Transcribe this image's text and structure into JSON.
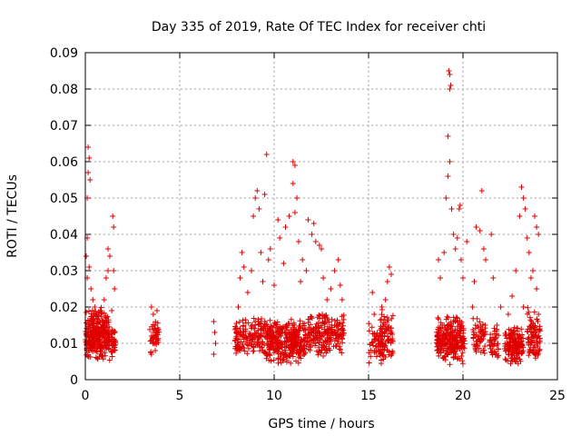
{
  "chart_data": {
    "type": "scatter",
    "title": "Day 335 of 2019, Rate Of TEC Index for receiver chti",
    "xlabel": "GPS time / hours",
    "ylabel": "ROTI / TECUs",
    "xlim": [
      0,
      25
    ],
    "ylim": [
      0,
      0.09
    ],
    "xticks": [
      0,
      5,
      10,
      15,
      20,
      25
    ],
    "yticks": [
      0,
      0.01,
      0.02,
      0.03,
      0.04,
      0.05,
      0.06,
      0.07,
      0.08,
      0.09
    ],
    "xtick_labels": [
      "0",
      "5",
      "10",
      "15",
      "20",
      "25"
    ],
    "ytick_labels": [
      "0",
      "0.01",
      "0.02",
      "0.03",
      "0.04",
      "0.05",
      "0.06",
      "0.07",
      "0.08",
      "0.09"
    ],
    "grid": true,
    "marker": "+",
    "color": "#e00000",
    "series": [
      {
        "name": "ROTI",
        "points": [
          [
            0.05,
            0.034
          ],
          [
            0.1,
            0.039
          ],
          [
            0.15,
            0.064
          ],
          [
            0.2,
            0.061
          ],
          [
            0.1,
            0.05
          ],
          [
            0.15,
            0.057
          ],
          [
            0.25,
            0.055
          ],
          [
            0.3,
            0.025
          ],
          [
            0.1,
            0.028
          ],
          [
            0.2,
            0.031
          ],
          [
            0.4,
            0.022
          ],
          [
            0.5,
            0.02
          ],
          [
            0.6,
            0.018
          ],
          [
            0.3,
            0.016
          ],
          [
            0.8,
            0.019
          ],
          [
            1.0,
            0.022
          ],
          [
            1.1,
            0.028
          ],
          [
            1.2,
            0.03
          ],
          [
            1.3,
            0.034
          ],
          [
            1.2,
            0.036
          ],
          [
            1.45,
            0.045
          ],
          [
            1.5,
            0.042
          ],
          [
            1.5,
            0.03
          ],
          [
            1.55,
            0.025
          ],
          [
            1.4,
            0.019
          ],
          [
            0.5,
            0.012
          ],
          [
            0.7,
            0.011
          ],
          [
            0.9,
            0.013
          ],
          [
            1.1,
            0.015
          ],
          [
            1.5,
            0.008
          ],
          [
            3.5,
            0.02
          ],
          [
            3.6,
            0.018
          ],
          [
            3.7,
            0.015
          ],
          [
            3.5,
            0.012
          ],
          [
            3.6,
            0.01
          ],
          [
            3.7,
            0.008
          ],
          [
            3.8,
            0.019
          ],
          [
            3.5,
            0.007
          ],
          [
            6.8,
            0.016
          ],
          [
            6.85,
            0.013
          ],
          [
            6.9,
            0.01
          ],
          [
            6.8,
            0.007
          ],
          [
            8.0,
            0.013
          ],
          [
            8.1,
            0.02
          ],
          [
            8.2,
            0.028
          ],
          [
            8.3,
            0.035
          ],
          [
            8.4,
            0.031
          ],
          [
            8.5,
            0.012
          ],
          [
            8.6,
            0.024
          ],
          [
            8.8,
            0.03
          ],
          [
            8.9,
            0.045
          ],
          [
            9.0,
            0.05
          ],
          [
            9.1,
            0.052
          ],
          [
            9.2,
            0.047
          ],
          [
            9.3,
            0.035
          ],
          [
            9.5,
            0.051
          ],
          [
            9.6,
            0.062
          ],
          [
            9.4,
            0.027
          ],
          [
            9.7,
            0.033
          ],
          [
            9.8,
            0.036
          ],
          [
            10.0,
            0.026
          ],
          [
            10.2,
            0.044
          ],
          [
            10.3,
            0.039
          ],
          [
            10.5,
            0.032
          ],
          [
            10.6,
            0.042
          ],
          [
            10.8,
            0.045
          ],
          [
            11.0,
            0.06
          ],
          [
            11.1,
            0.059
          ],
          [
            11.0,
            0.054
          ],
          [
            11.2,
            0.05
          ],
          [
            11.1,
            0.046
          ],
          [
            11.3,
            0.038
          ],
          [
            11.4,
            0.027
          ],
          [
            11.5,
            0.033
          ],
          [
            11.7,
            0.03
          ],
          [
            11.8,
            0.044
          ],
          [
            12.0,
            0.04
          ],
          [
            12.1,
            0.043
          ],
          [
            12.2,
            0.038
          ],
          [
            12.4,
            0.037
          ],
          [
            12.5,
            0.036
          ],
          [
            12.6,
            0.028
          ],
          [
            12.8,
            0.022
          ],
          [
            13.0,
            0.025
          ],
          [
            13.2,
            0.03
          ],
          [
            13.4,
            0.033
          ],
          [
            13.5,
            0.026
          ],
          [
            13.6,
            0.022
          ],
          [
            9.0,
            0.015
          ],
          [
            10.0,
            0.012
          ],
          [
            11.0,
            0.011
          ],
          [
            12.0,
            0.013
          ],
          [
            15.2,
            0.024
          ],
          [
            15.3,
            0.018
          ],
          [
            15.4,
            0.012
          ],
          [
            15.5,
            0.009
          ],
          [
            15.7,
            0.02
          ],
          [
            15.9,
            0.022
          ],
          [
            16.0,
            0.027
          ],
          [
            16.1,
            0.031
          ],
          [
            16.2,
            0.029
          ],
          [
            16.0,
            0.008
          ],
          [
            18.7,
            0.033
          ],
          [
            18.8,
            0.028
          ],
          [
            19.0,
            0.035
          ],
          [
            19.1,
            0.05
          ],
          [
            19.2,
            0.056
          ],
          [
            19.3,
            0.06
          ],
          [
            19.25,
            0.085
          ],
          [
            19.3,
            0.084
          ],
          [
            19.35,
            0.081
          ],
          [
            19.3,
            0.08
          ],
          [
            19.2,
            0.067
          ],
          [
            19.4,
            0.047
          ],
          [
            19.5,
            0.04
          ],
          [
            19.6,
            0.036
          ],
          [
            19.7,
            0.039
          ],
          [
            19.8,
            0.047
          ],
          [
            19.85,
            0.048
          ],
          [
            19.9,
            0.033
          ],
          [
            20.0,
            0.028
          ],
          [
            20.2,
            0.038
          ],
          [
            20.6,
            0.027
          ],
          [
            20.7,
            0.042
          ],
          [
            20.9,
            0.041
          ],
          [
            21.0,
            0.052
          ],
          [
            21.1,
            0.036
          ],
          [
            21.2,
            0.033
          ],
          [
            21.5,
            0.04
          ],
          [
            21.6,
            0.028
          ],
          [
            21.8,
            0.015
          ],
          [
            22.0,
            0.02
          ],
          [
            22.4,
            0.018
          ],
          [
            22.6,
            0.023
          ],
          [
            22.8,
            0.03
          ],
          [
            23.0,
            0.045
          ],
          [
            23.1,
            0.053
          ],
          [
            23.2,
            0.05
          ],
          [
            23.3,
            0.047
          ],
          [
            23.4,
            0.039
          ],
          [
            23.5,
            0.035
          ],
          [
            23.7,
            0.03
          ],
          [
            23.8,
            0.045
          ],
          [
            23.9,
            0.042
          ],
          [
            24.0,
            0.04
          ],
          [
            23.6,
            0.028
          ],
          [
            23.2,
            0.02
          ],
          [
            22.9,
            0.012
          ],
          [
            23.9,
            0.025
          ],
          [
            24.0,
            0.018
          ],
          [
            22.7,
            0.008
          ],
          [
            20.5,
            0.02
          ]
        ],
        "clusters": [
          {
            "x": [
              0.0,
              1.3
            ],
            "y": [
              0.005,
              0.02
            ],
            "n": 300
          },
          {
            "x": [
              1.35,
              1.6
            ],
            "y": [
              0.006,
              0.016
            ],
            "n": 30
          },
          {
            "x": [
              3.4,
              3.9
            ],
            "y": [
              0.007,
              0.017
            ],
            "n": 40
          },
          {
            "x": [
              7.9,
              9.5
            ],
            "y": [
              0.006,
              0.018
            ],
            "n": 150
          },
          {
            "x": [
              9.5,
              11.6
            ],
            "y": [
              0.004,
              0.017
            ],
            "n": 350
          },
          {
            "x": [
              11.6,
              13.7
            ],
            "y": [
              0.006,
              0.019
            ],
            "n": 220
          },
          {
            "x": [
              15.0,
              15.6
            ],
            "y": [
              0.004,
              0.016
            ],
            "n": 40
          },
          {
            "x": [
              15.6,
              16.3
            ],
            "y": [
              0.003,
              0.02
            ],
            "n": 90
          },
          {
            "x": [
              18.6,
              20.1
            ],
            "y": [
              0.004,
              0.018
            ],
            "n": 250
          },
          {
            "x": [
              20.5,
              21.2
            ],
            "y": [
              0.006,
              0.018
            ],
            "n": 60
          },
          {
            "x": [
              21.4,
              21.9
            ],
            "y": [
              0.004,
              0.015
            ],
            "n": 40
          },
          {
            "x": [
              22.2,
              23.2
            ],
            "y": [
              0.004,
              0.015
            ],
            "n": 150
          },
          {
            "x": [
              23.4,
              24.1
            ],
            "y": [
              0.005,
              0.02
            ],
            "n": 90
          }
        ]
      }
    ]
  }
}
